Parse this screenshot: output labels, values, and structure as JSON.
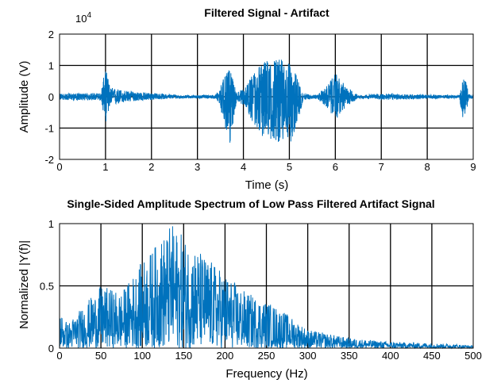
{
  "chart_data": [
    {
      "type": "line",
      "title": "Filtered Signal - Artifact",
      "xlabel": "Time (s)",
      "ylabel": "Amplitude (V)",
      "exponent_label": "10",
      "exponent_power": "4",
      "xlim": [
        0,
        9
      ],
      "ylim": [
        -2,
        2
      ],
      "xticks": [
        "0",
        "1",
        "2",
        "3",
        "4",
        "5",
        "6",
        "7",
        "8",
        "9"
      ],
      "yticks": [
        "-2",
        "-1",
        "0",
        "1",
        "2"
      ],
      "grid": true,
      "line_color": "#0072BD",
      "envelope": [
        {
          "t": 0.0,
          "hi": 0.1,
          "lo": -0.1
        },
        {
          "t": 0.9,
          "hi": 0.12,
          "lo": -0.12
        },
        {
          "t": 1.0,
          "hi": 0.95,
          "lo": -0.85
        },
        {
          "t": 1.1,
          "hi": 0.3,
          "lo": -0.3
        },
        {
          "t": 1.5,
          "hi": 0.18,
          "lo": -0.15
        },
        {
          "t": 2.2,
          "hi": 0.1,
          "lo": -0.08
        },
        {
          "t": 2.6,
          "hi": 0.05,
          "lo": -0.05
        },
        {
          "t": 3.0,
          "hi": 0.05,
          "lo": -0.05
        },
        {
          "t": 3.4,
          "hi": 0.06,
          "lo": -0.06
        },
        {
          "t": 3.5,
          "hi": 0.4,
          "lo": -0.4
        },
        {
          "t": 3.7,
          "hi": 0.9,
          "lo": -1.6
        },
        {
          "t": 3.85,
          "hi": 0.15,
          "lo": -0.15
        },
        {
          "t": 4.05,
          "hi": 0.3,
          "lo": -0.3
        },
        {
          "t": 4.3,
          "hi": 1.0,
          "lo": -1.2
        },
        {
          "t": 4.6,
          "hi": 1.25,
          "lo": -1.4
        },
        {
          "t": 4.9,
          "hi": 1.2,
          "lo": -1.5
        },
        {
          "t": 5.1,
          "hi": 0.9,
          "lo": -1.4
        },
        {
          "t": 5.3,
          "hi": 0.1,
          "lo": -0.1
        },
        {
          "t": 5.6,
          "hi": 0.05,
          "lo": -0.05
        },
        {
          "t": 5.85,
          "hi": 0.4,
          "lo": -0.4
        },
        {
          "t": 6.0,
          "hi": 0.75,
          "lo": -0.75
        },
        {
          "t": 6.25,
          "hi": 0.3,
          "lo": -0.3
        },
        {
          "t": 6.5,
          "hi": 0.05,
          "lo": -0.05
        },
        {
          "t": 7.2,
          "hi": 0.1,
          "lo": -0.1
        },
        {
          "t": 8.0,
          "hi": 0.06,
          "lo": -0.06
        },
        {
          "t": 8.7,
          "hi": 0.05,
          "lo": -0.05
        },
        {
          "t": 8.8,
          "hi": 0.85,
          "lo": -0.95
        },
        {
          "t": 8.9,
          "hi": 0.08,
          "lo": -0.08
        },
        {
          "t": 9.0,
          "hi": 0.05,
          "lo": -0.05
        }
      ]
    },
    {
      "type": "line",
      "title": "Single-Sided Amplitude Spectrum of Low Pass Filtered Artifact Signal",
      "xlabel": "Frequency (Hz)",
      "ylabel": "Normalized |Y(f)|",
      "xlim": [
        0,
        500
      ],
      "ylim": [
        0,
        1
      ],
      "xticks": [
        "0",
        "50",
        "100",
        "150",
        "200",
        "250",
        "300",
        "350",
        "400",
        "450",
        "500"
      ],
      "yticks": [
        "0",
        "0.5",
        "1"
      ],
      "grid": true,
      "line_color": "#0072BD",
      "envelope": [
        {
          "f": 0,
          "hi": 0.3
        },
        {
          "f": 10,
          "hi": 0.2
        },
        {
          "f": 30,
          "hi": 0.35
        },
        {
          "f": 50,
          "hi": 0.5
        },
        {
          "f": 75,
          "hi": 0.45
        },
        {
          "f": 100,
          "hi": 0.7
        },
        {
          "f": 125,
          "hi": 0.9
        },
        {
          "f": 135,
          "hi": 1.0
        },
        {
          "f": 150,
          "hi": 0.9
        },
        {
          "f": 175,
          "hi": 0.75
        },
        {
          "f": 200,
          "hi": 0.6
        },
        {
          "f": 225,
          "hi": 0.45
        },
        {
          "f": 250,
          "hi": 0.38
        },
        {
          "f": 270,
          "hi": 0.3
        },
        {
          "f": 300,
          "hi": 0.15
        },
        {
          "f": 350,
          "hi": 0.08
        },
        {
          "f": 400,
          "hi": 0.05
        },
        {
          "f": 450,
          "hi": 0.04
        },
        {
          "f": 480,
          "hi": 0.03
        },
        {
          "f": 500,
          "hi": 0.02
        }
      ]
    }
  ]
}
